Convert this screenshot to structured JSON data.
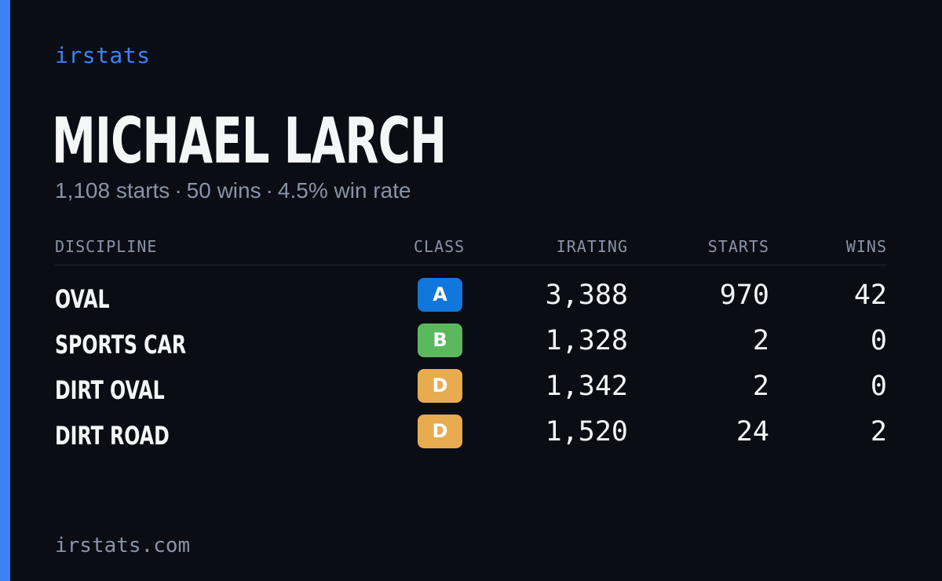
{
  "brand": "irstats",
  "driver": {
    "name": "MICHAEL LARCH",
    "starts_text": "1,108 starts",
    "wins_text": "50 wins",
    "win_rate_text": "4.5% win rate",
    "separator": "·"
  },
  "table": {
    "headers": {
      "discipline": "DISCIPLINE",
      "class": "CLASS",
      "irating": "IRATING",
      "starts": "STARTS",
      "wins": "WINS"
    },
    "rows": [
      {
        "discipline": "OVAL",
        "class": "A",
        "class_color": "#1177dd",
        "irating": "3,388",
        "starts": "970",
        "wins": "42"
      },
      {
        "discipline": "SPORTS CAR",
        "class": "B",
        "class_color": "#5cb85c",
        "irating": "1,328",
        "starts": "2",
        "wins": "0"
      },
      {
        "discipline": "DIRT OVAL",
        "class": "D",
        "class_color": "#e8ab4f",
        "irating": "1,342",
        "starts": "2",
        "wins": "0"
      },
      {
        "discipline": "DIRT ROAD",
        "class": "D",
        "class_color": "#e8ab4f",
        "irating": "1,520",
        "starts": "24",
        "wins": "2"
      }
    ]
  },
  "footer": "irstats.com",
  "colors": {
    "accent": "#3b82f6",
    "background": "#0a0d14",
    "text_primary": "#f5f6f8",
    "text_muted": "#8a93a6"
  }
}
